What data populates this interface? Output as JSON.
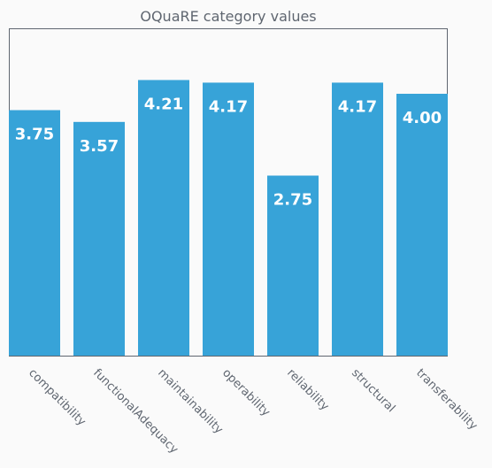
{
  "chart_data": {
    "type": "bar",
    "title": "OQuaRE category values",
    "xlabel": "",
    "ylabel": "",
    "categories": [
      "compatibility",
      "functionalAdequacy",
      "maintainability",
      "operability",
      "reliability",
      "structural",
      "transferability"
    ],
    "values": [
      3.75,
      3.57,
      4.21,
      4.17,
      2.75,
      4.17,
      4.0
    ],
    "value_labels": [
      "3.75",
      "3.57",
      "4.21",
      "4.17",
      "2.75",
      "4.17",
      "4.00"
    ],
    "ylim": [
      0,
      5
    ],
    "grid": false,
    "legend": "none",
    "y_ticks_shown": false,
    "bar_color": "#37a3d8",
    "axis_color": "#5f6670"
  }
}
